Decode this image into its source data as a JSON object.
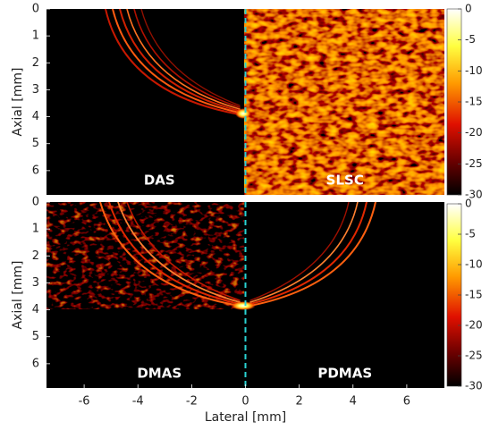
{
  "chart_data": [
    {
      "type": "image",
      "ylabel": "Axial [mm]",
      "xlim": [
        -7.4,
        7.4
      ],
      "ylim": [
        0,
        6.9
      ],
      "yreverse": true,
      "yticks": [
        0,
        1,
        2,
        3,
        4,
        5,
        6
      ],
      "divider_x": 0,
      "labels": [
        "DAS",
        "SLSC"
      ],
      "colorbar": {
        "lim": [
          -30,
          0
        ],
        "ticks": [
          0,
          -5,
          -10,
          -15,
          -20,
          -25,
          -30
        ]
      }
    },
    {
      "type": "image",
      "ylabel": "Axial [mm]",
      "xlabel": "Lateral [mm]",
      "xlim": [
        -7.4,
        7.4
      ],
      "ylim": [
        0,
        6.9
      ],
      "yreverse": true,
      "xticks": [
        -6,
        -4,
        -2,
        0,
        2,
        4,
        6
      ],
      "yticks": [
        0,
        1,
        2,
        3,
        4,
        5,
        6
      ],
      "divider_x": 0,
      "labels": [
        "DMAS",
        "PDMAS"
      ],
      "colorbar": {
        "lim": [
          -30,
          0
        ],
        "ticks": [
          0,
          -5,
          -10,
          -15,
          -20,
          -25,
          -30
        ]
      }
    }
  ]
}
